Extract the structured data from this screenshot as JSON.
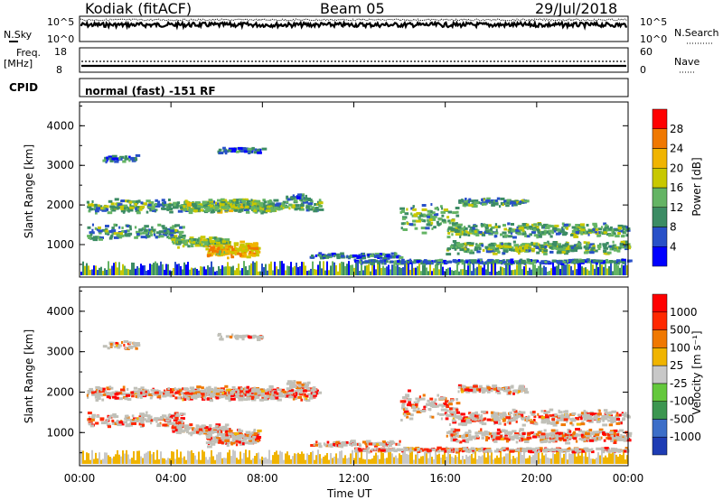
{
  "header": {
    "station": "Kodiak (fitACF)",
    "beam": "Beam 05",
    "date": "29/Jul/2018"
  },
  "noise_panel": {
    "left_label": "N.Sky",
    "left_ticks": [
      "10^5",
      "10^0"
    ],
    "right_label": "N.Search",
    "right_ticks": [
      "10^5",
      "10^0"
    ]
  },
  "freq_panel": {
    "left_label_1": "Freq.",
    "left_label_2": "[MHz]",
    "left_ticks": [
      "18",
      "8"
    ],
    "right_label": "Nave",
    "right_ticks": [
      "60",
      "0"
    ]
  },
  "cpid_panel": {
    "label": "CPID",
    "text": "normal (fast) -151 RF"
  },
  "colors": {
    "background": "#ffffff",
    "power_scale": [
      "#0000ff",
      "#2850c8",
      "#3c8c64",
      "#64b464",
      "#c8c800",
      "#f0b400",
      "#f07800",
      "#ff0000"
    ],
    "velocity_scale": [
      "#1e3cb4",
      "#3c6ec8",
      "#3c9650",
      "#64c83c",
      "#c8c8c8",
      "#f0b400",
      "#f07800",
      "#ff2800",
      "#ff0000"
    ],
    "ground_scatter": "#c0c0b8"
  },
  "chart_data": [
    {
      "type": "heatmap",
      "name": "power",
      "ylabel": "Slant Range [km]",
      "yticks": [
        1000,
        2000,
        3000,
        4000
      ],
      "ylim": [
        180,
        4600
      ],
      "xlim": [
        "00:00",
        "24:00"
      ],
      "colorbar": {
        "label": "Power [dB]",
        "ticks": [
          "28",
          "24",
          "20",
          "16",
          "12",
          "8",
          "4"
        ],
        "range": [
          0,
          30
        ]
      }
    },
    {
      "type": "heatmap",
      "name": "velocity",
      "ylabel": "Slant Range [km]",
      "yticks": [
        1000,
        2000,
        3000,
        4000
      ],
      "ylim": [
        180,
        4600
      ],
      "xlim": [
        "00:00",
        "24:00"
      ],
      "xticks": [
        "00:00",
        "04:00",
        "08:00",
        "12:00",
        "16:00",
        "20:00",
        "00:00"
      ],
      "xlabel": "Time UT",
      "colorbar": {
        "label": "Velocity [m s⁻¹]",
        "ticks": [
          "1000",
          "500",
          "100",
          "25",
          "-25",
          "-100",
          "-500",
          "-1000"
        ]
      }
    }
  ]
}
